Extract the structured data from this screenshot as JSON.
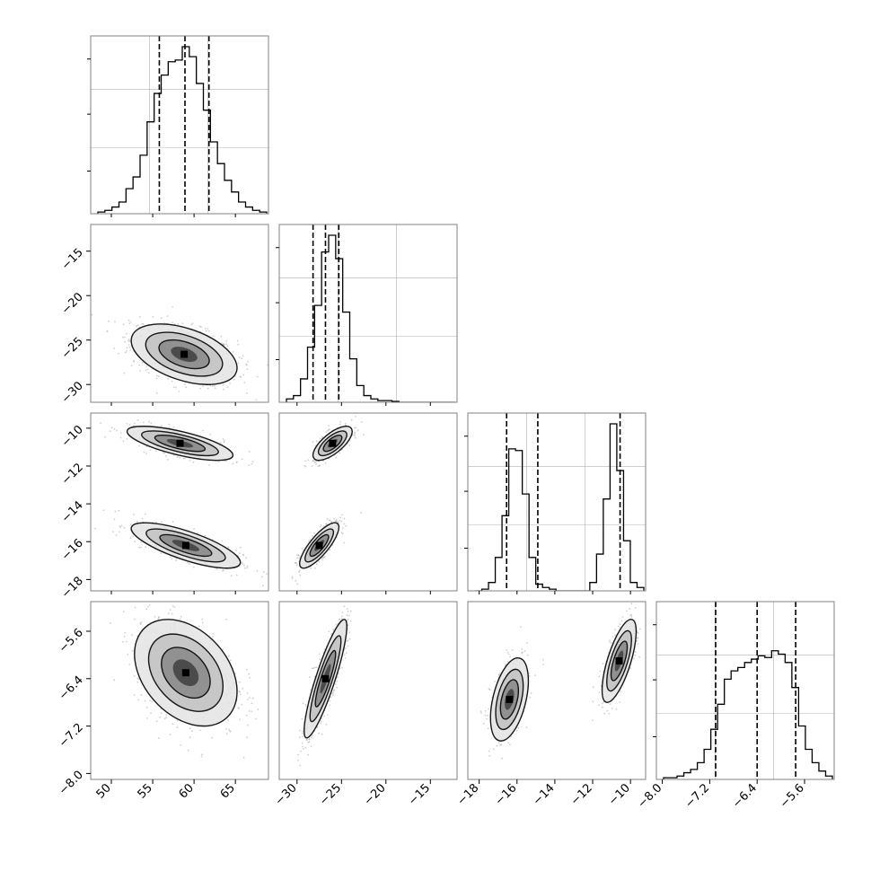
{
  "chart_data": {
    "type": "corner",
    "parameters": [
      {
        "index": 0,
        "range": [
          47.5,
          69
        ],
        "ticks": [
          "50",
          "55",
          "60",
          "65"
        ],
        "tick_values": [
          50,
          55,
          60,
          65
        ],
        "quantiles": [
          55.8,
          58.9,
          61.8
        ]
      },
      {
        "index": 1,
        "range": [
          -32,
          -12
        ],
        "ticks": [
          "-30",
          "-25",
          "-20",
          "-15"
        ],
        "tick_values": [
          -30,
          -25,
          -20,
          -15
        ],
        "quantiles": [
          -28.2,
          -26.8,
          -25.3
        ]
      },
      {
        "index": 2,
        "range": [
          -18.6,
          -9.2
        ],
        "ticks": [
          "-18",
          "-16",
          "-14",
          "-12",
          "-10"
        ],
        "tick_values": [
          -18,
          -16,
          -14,
          -12,
          -10
        ],
        "quantiles": [
          -16.55,
          -14.9,
          -10.55
        ]
      },
      {
        "index": 3,
        "range": [
          -8.1,
          -5.1
        ],
        "ticks": [
          "-8.0",
          "-7.2",
          "-6.4",
          "-5.6"
        ],
        "tick_values": [
          -8.0,
          -7.2,
          -6.4,
          -5.6
        ],
        "quantiles": [
          -7.1,
          -6.4,
          -5.75
        ]
      }
    ],
    "histograms": [
      [
        0.01,
        0.02,
        0.04,
        0.07,
        0.15,
        0.22,
        0.35,
        0.55,
        0.72,
        0.83,
        0.91,
        0.92,
        1.0,
        0.94,
        0.78,
        0.62,
        0.43,
        0.3,
        0.2,
        0.13,
        0.07,
        0.04,
        0.02,
        0.01
      ],
      [
        0.02,
        0.04,
        0.14,
        0.33,
        0.58,
        0.9,
        1.0,
        0.86,
        0.54,
        0.26,
        0.1,
        0.04,
        0.02,
        0.01,
        0.01,
        0.005,
        0,
        0,
        0,
        0,
        0,
        0,
        0,
        0
      ],
      [
        0,
        0.01,
        0.05,
        0.2,
        0.45,
        0.85,
        0.84,
        0.58,
        0.2,
        0.04,
        0.02,
        0.01,
        0,
        0,
        0,
        0,
        0,
        0.05,
        0.22,
        0.55,
        1.0,
        0.72,
        0.3,
        0.05,
        0.02
      ],
      [
        0.01,
        0.01,
        0.02,
        0.04,
        0.06,
        0.1,
        0.18,
        0.3,
        0.45,
        0.6,
        0.65,
        0.67,
        0.7,
        0.72,
        0.74,
        0.73,
        0.77,
        0.75,
        0.7,
        0.55,
        0.32,
        0.18,
        0.1,
        0.05,
        0.02
      ]
    ],
    "pairs": [
      {
        "x": 0,
        "y": 1,
        "modes": [
          {
            "mx": 58.8,
            "my": -26.6,
            "sx": 3.2,
            "sy": 1.7,
            "rho": -0.45,
            "w": 1
          }
        ]
      },
      {
        "x": 0,
        "y": 2,
        "modes": [
          {
            "mx": 58.3,
            "my": -10.8,
            "sx": 3.2,
            "sy": 0.45,
            "rho": -0.7,
            "w": 1
          },
          {
            "mx": 59.0,
            "my": -16.2,
            "sx": 3.3,
            "sy": 0.6,
            "rho": -0.75,
            "w": 1.2
          }
        ]
      },
      {
        "x": 0,
        "y": 3,
        "modes": [
          {
            "mx": 59.0,
            "my": -6.3,
            "sx": 3.1,
            "sy": 0.45,
            "rho": -0.35,
            "w": 1
          }
        ]
      },
      {
        "x": 1,
        "y": 2,
        "modes": [
          {
            "mx": -26.0,
            "my": -10.8,
            "sx": 1.1,
            "sy": 0.45,
            "rho": 0.7,
            "w": 1
          },
          {
            "mx": -27.5,
            "my": -16.2,
            "sx": 1.1,
            "sy": 0.6,
            "rho": 0.8,
            "w": 1.2
          }
        ]
      },
      {
        "x": 1,
        "y": 3,
        "modes": [
          {
            "mx": -26.8,
            "my": -6.4,
            "sx": 1.2,
            "sy": 0.5,
            "rho": 0.88,
            "w": 1
          }
        ]
      },
      {
        "x": 2,
        "y": 3,
        "modes": [
          {
            "mx": -16.4,
            "my": -6.75,
            "sx": 0.5,
            "sy": 0.35,
            "rho": 0.45,
            "w": 1
          },
          {
            "mx": -10.6,
            "my": -6.1,
            "sx": 0.45,
            "sy": 0.35,
            "rho": 0.7,
            "w": 1.1
          }
        ]
      }
    ],
    "grid": true,
    "colors": {
      "line": "#000000",
      "points": "#a8a8a8",
      "grid": "#b0b0b0",
      "frame": "#808080"
    }
  }
}
